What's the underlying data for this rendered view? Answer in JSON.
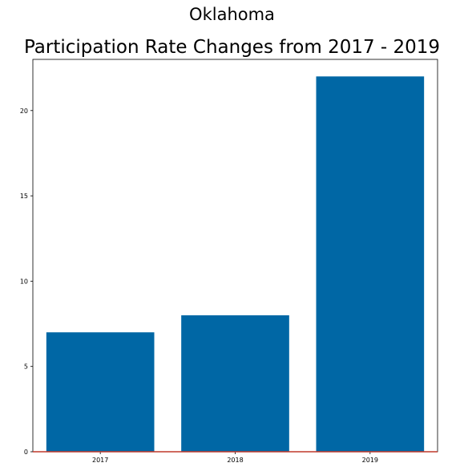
{
  "chart_data": {
    "type": "bar",
    "title": "Oklahoma",
    "subtitle": "Participation Rate Changes from 2017 - 2019",
    "xlabel": "",
    "ylabel": "",
    "categories": [
      "2017",
      "2018",
      "2019"
    ],
    "values": [
      7,
      8,
      22
    ],
    "ylim": [
      0,
      23
    ],
    "yticks": [
      0,
      5,
      10,
      15,
      20
    ],
    "bar_color": "#0067a5",
    "baseline_color": "#c0392b",
    "grid": false,
    "legend": "none"
  }
}
